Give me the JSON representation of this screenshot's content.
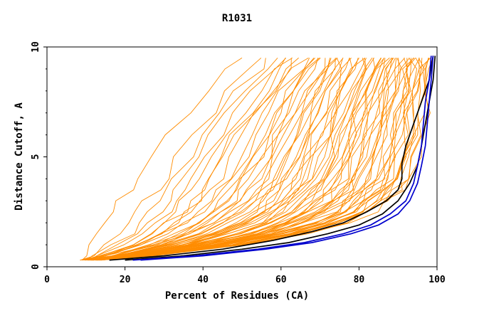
{
  "chart_data": {
    "type": "line",
    "title": "R1031",
    "xlabel": "Percent of Residues (CA)",
    "ylabel": "Distance Cutoff, A",
    "xlim": [
      0,
      100
    ],
    "ylim": [
      0,
      10
    ],
    "xticks": [
      "0",
      "20",
      "40",
      "60",
      "80",
      "100"
    ],
    "yticks": [
      "0",
      "5",
      "10"
    ],
    "colors": {
      "background_series": "#ff8c00",
      "highlight_black": "#000000",
      "highlight_blue": "#0000cd",
      "axes": "#000000"
    },
    "background_series_template": {
      "name": "other predictions",
      "y": [
        0.3,
        0.5,
        1.0,
        1.5,
        2.0,
        2.5,
        3.0,
        3.5,
        4.0,
        5.0,
        6.0,
        7.0,
        8.0,
        9.0,
        9.5
      ],
      "x_min_curve": [
        9,
        10,
        12,
        13.5,
        15,
        17,
        19,
        21,
        23,
        27,
        31,
        36,
        41,
        47,
        50
      ],
      "x_max_curve": [
        13,
        26,
        50,
        66,
        77,
        84,
        88,
        91,
        93,
        95,
        96,
        97,
        97.5,
        98,
        98.5
      ],
      "count": 70
    },
    "series": [
      {
        "name": "black highlight 1",
        "color": "#000000",
        "x": [
          16,
          30,
          45,
          58,
          68,
          76,
          82,
          87,
          90,
          91,
          91,
          92,
          94,
          96,
          98,
          99
        ],
        "y": [
          0.3,
          0.5,
          0.8,
          1.2,
          1.6,
          2.0,
          2.5,
          3.0,
          3.5,
          4.0,
          4.7,
          5.5,
          6.5,
          7.5,
          8.5,
          9.6
        ]
      },
      {
        "name": "black highlight 2",
        "color": "#000000",
        "x": [
          20,
          35,
          50,
          62,
          72,
          80,
          86,
          90,
          93,
          95,
          96,
          97,
          98,
          99,
          99.5
        ],
        "y": [
          0.3,
          0.5,
          0.8,
          1.1,
          1.5,
          1.9,
          2.4,
          3.0,
          3.8,
          4.6,
          5.5,
          6.5,
          7.5,
          8.5,
          9.6
        ]
      },
      {
        "name": "blue highlight 1",
        "color": "#0000cd",
        "x": [
          22,
          38,
          54,
          66,
          76,
          83,
          88,
          92,
          94,
          95,
          96,
          96.5,
          97,
          98,
          98.5
        ],
        "y": [
          0.3,
          0.5,
          0.8,
          1.1,
          1.5,
          1.9,
          2.4,
          3.0,
          3.8,
          4.6,
          5.5,
          6.5,
          7.5,
          8.5,
          9.6
        ]
      },
      {
        "name": "blue highlight 2",
        "color": "#0000cd",
        "x": [
          24,
          40,
          56,
          68,
          78,
          85,
          90,
          93,
          95,
          96,
          97,
          97.5,
          98,
          98.5,
          99
        ],
        "y": [
          0.3,
          0.5,
          0.8,
          1.1,
          1.5,
          1.9,
          2.4,
          3.0,
          3.8,
          4.6,
          5.5,
          6.5,
          7.5,
          8.5,
          9.6
        ]
      }
    ]
  }
}
